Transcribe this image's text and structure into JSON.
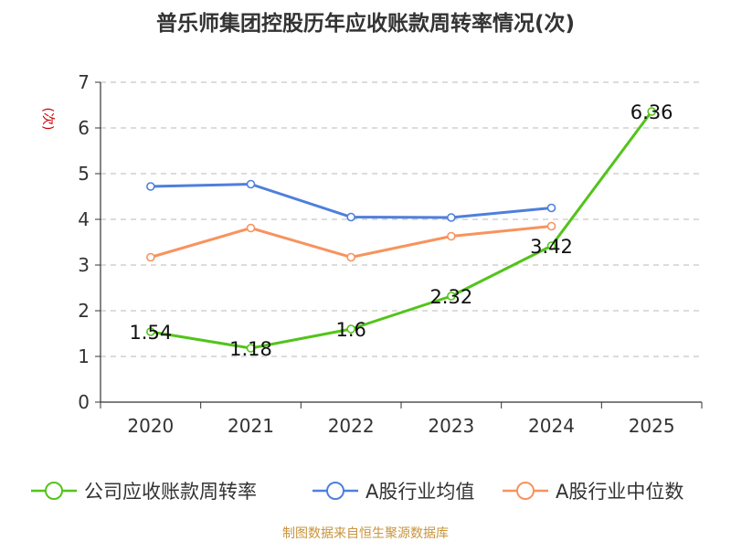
{
  "chart_data": {
    "type": "line",
    "title": "普乐师集团控股历年应收账款周转率情况(次)",
    "ylabel": "(次)",
    "xlabel": "",
    "categories": [
      "2020",
      "2021",
      "2022",
      "2023",
      "2024",
      "2025"
    ],
    "ylim": [
      0,
      7
    ],
    "yticks": [
      0,
      1,
      2,
      3,
      4,
      5,
      6,
      7
    ],
    "grid": true,
    "legend_position": "bottom",
    "series": [
      {
        "name": "公司应收账款周转率",
        "color": "#52c41a",
        "values": [
          1.54,
          1.18,
          1.6,
          2.32,
          3.42,
          6.36
        ],
        "labels": [
          "1.54",
          "1.18",
          "1.6",
          "2.32",
          "3.42",
          "6.36"
        ]
      },
      {
        "name": "A股行业均值",
        "color": "#4e7fdc",
        "values": [
          4.72,
          4.77,
          4.05,
          4.04,
          4.25,
          null
        ]
      },
      {
        "name": "A股行业中位数",
        "color": "#f7935e",
        "values": [
          3.17,
          3.81,
          3.17,
          3.63,
          3.85,
          null
        ]
      }
    ]
  },
  "footer": {
    "source": "制图数据来自恒生聚源数据库",
    "color": "#c8943c"
  }
}
